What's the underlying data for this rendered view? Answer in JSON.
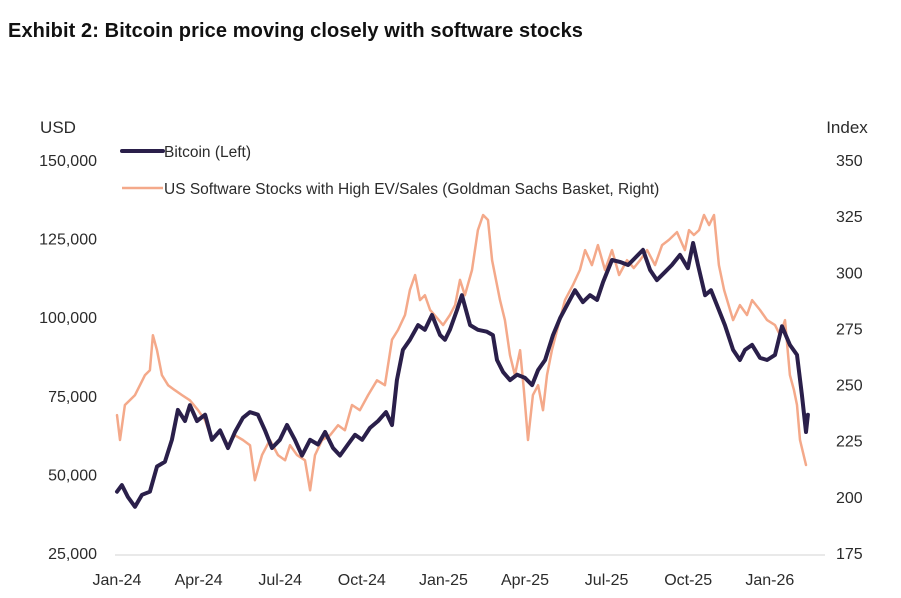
{
  "title": "Exhibit 2: Bitcoin price moving closely with software stocks",
  "chart_data": {
    "type": "line",
    "title": "Exhibit 2: Bitcoin price moving closely with software stocks",
    "x_unit": "months since Jan-24",
    "xlabel": "",
    "x_ticks": [
      "Jan-24",
      "Apr-24",
      "Jul-24",
      "Oct-24",
      "Jan-25",
      "Apr-25",
      "Jul-25",
      "Oct-25",
      "Jan-26"
    ],
    "x_tick_positions": [
      0,
      3,
      6,
      9,
      12,
      15,
      18,
      21,
      24
    ],
    "xlim": [
      0,
      25.4
    ],
    "left_axis": {
      "label": "USD",
      "ylim": [
        25000,
        150000
      ],
      "ticks": [
        25000,
        50000,
        75000,
        100000,
        125000,
        150000
      ],
      "tick_labels": [
        "25,000",
        "50,000",
        "75,000",
        "100,000",
        "125,000",
        "150,000"
      ]
    },
    "right_axis": {
      "label": "Index",
      "ylim": [
        175,
        350
      ],
      "ticks": [
        175,
        200,
        225,
        250,
        275,
        300,
        325,
        350
      ],
      "tick_labels": [
        "175",
        "200",
        "225",
        "250",
        "275",
        "300",
        "325",
        "350"
      ]
    },
    "grid": false,
    "legend": "top-left",
    "series": [
      {
        "name": "Bitcoin (Left)",
        "axis": "left",
        "color": "#2a1f4a",
        "x": [
          0,
          0.18,
          0.4,
          0.66,
          0.92,
          1.21,
          1.47,
          1.76,
          2.02,
          2.24,
          2.5,
          2.68,
          2.94,
          3.24,
          3.49,
          3.79,
          4.08,
          4.34,
          4.63,
          4.89,
          5.18,
          5.44,
          5.7,
          5.99,
          6.25,
          6.54,
          6.8,
          7.1,
          7.39,
          7.65,
          7.94,
          8.2,
          8.49,
          8.75,
          9.01,
          9.3,
          9.6,
          9.89,
          10.11,
          10.29,
          10.51,
          10.77,
          11.07,
          11.32,
          11.58,
          11.88,
          12.06,
          12.24,
          12.5,
          12.68,
          12.98,
          13.27,
          13.6,
          13.82,
          13.97,
          14.19,
          14.45,
          14.71,
          15.0,
          15.26,
          15.48,
          15.74,
          16.03,
          16.29,
          16.54,
          16.84,
          17.13,
          17.39,
          17.65,
          17.87,
          18.2,
          18.49,
          18.79,
          19.04,
          19.34,
          19.6,
          19.85,
          20.15,
          20.4,
          20.7,
          20.99,
          21.18,
          21.36,
          21.62,
          21.84,
          22.06,
          22.35,
          22.65,
          22.9,
          23.09,
          23.35,
          23.64,
          23.9,
          24.19,
          24.45,
          24.74,
          25.0,
          25.18,
          25.33,
          25.4
        ],
        "values": [
          44500,
          46600,
          42800,
          39700,
          43500,
          44500,
          52500,
          54000,
          61000,
          70500,
          67000,
          72000,
          67000,
          69000,
          61000,
          64000,
          58400,
          63500,
          68000,
          69800,
          69000,
          64000,
          58400,
          61000,
          65700,
          61000,
          56000,
          61000,
          59500,
          63500,
          58400,
          56000,
          59500,
          62600,
          61000,
          64800,
          67000,
          69800,
          65700,
          80000,
          89600,
          92800,
          97500,
          96000,
          100700,
          94300,
          92800,
          96000,
          102300,
          107000,
          97500,
          96000,
          95400,
          94300,
          86400,
          82600,
          80000,
          81700,
          80700,
          78400,
          83200,
          86400,
          94300,
          99700,
          103800,
          108600,
          104800,
          107000,
          105500,
          111200,
          118200,
          117600,
          116600,
          118800,
          121400,
          115000,
          111800,
          114400,
          116600,
          119800,
          115600,
          123600,
          116600,
          107000,
          108600,
          103800,
          97500,
          89600,
          86400,
          89600,
          91200,
          87100,
          86400,
          88000,
          97100,
          91200,
          88000,
          75300,
          63500,
          69000
        ]
      },
      {
        "name": "US Software Stocks with High EV/Sales (Goldman Sachs Basket, Right)",
        "axis": "right",
        "color": "#f4a98a",
        "x": [
          0,
          0.11,
          0.29,
          0.66,
          1.03,
          1.21,
          1.32,
          1.47,
          1.65,
          1.88,
          2.13,
          2.39,
          2.68,
          2.98,
          3.24,
          3.49,
          3.79,
          4.08,
          4.34,
          4.63,
          4.89,
          5.07,
          5.33,
          5.62,
          5.92,
          6.18,
          6.36,
          6.62,
          6.91,
          7.1,
          7.28,
          7.54,
          7.83,
          8.13,
          8.38,
          8.64,
          8.93,
          9.23,
          9.56,
          9.85,
          10.11,
          10.33,
          10.59,
          10.77,
          10.96,
          11.14,
          11.32,
          11.51,
          11.77,
          11.99,
          12.24,
          12.43,
          12.61,
          12.79,
          13.05,
          13.27,
          13.46,
          13.64,
          13.79,
          14.08,
          14.26,
          14.45,
          14.63,
          14.82,
          14.96,
          15.11,
          15.29,
          15.48,
          15.66,
          15.81,
          15.99,
          16.18,
          16.47,
          16.76,
          17.02,
          17.21,
          17.46,
          17.68,
          17.94,
          18.2,
          18.46,
          18.75,
          19.0,
          19.23,
          19.49,
          19.78,
          20.04,
          20.29,
          20.59,
          20.88,
          21.03,
          21.21,
          21.4,
          21.58,
          21.77,
          21.95,
          22.13,
          22.32,
          22.65,
          22.9,
          23.16,
          23.35,
          23.64,
          23.9,
          24.19,
          24.38,
          24.56,
          24.74,
          24.89,
          25.0,
          25.11,
          25.33
        ],
        "values": [
          236.4,
          225.3,
          240.9,
          245.3,
          254.2,
          256.4,
          272,
          265.3,
          254.2,
          249.7,
          247.5,
          245.3,
          243,
          238.6,
          234.1,
          225.3,
          229.7,
          223,
          227.4,
          225.3,
          223,
          207.4,
          218.6,
          225.3,
          218.6,
          216.3,
          223,
          218.6,
          216.3,
          202.9,
          218.6,
          225.3,
          227.4,
          231.9,
          229.7,
          240.9,
          238.6,
          245.3,
          251.9,
          249.7,
          270,
          274.3,
          281,
          292.1,
          298.8,
          287.6,
          289.8,
          283.2,
          279.6,
          276.5,
          281,
          285.4,
          296.6,
          289.8,
          301,
          318.8,
          325.5,
          323.3,
          305.4,
          287.6,
          278.7,
          263.1,
          254.2,
          265.3,
          247.5,
          225.3,
          245.3,
          249.7,
          238.6,
          254.2,
          265.3,
          274.3,
          287.6,
          294.3,
          301,
          309.9,
          303.2,
          312.1,
          301,
          309.9,
          298.8,
          305.4,
          301.9,
          305.4,
          309.9,
          303.2,
          312.1,
          314.4,
          317.9,
          309.9,
          318.8,
          316.6,
          318.8,
          325.5,
          321,
          325.5,
          303.2,
          292.1,
          278.7,
          285.4,
          281,
          287.6,
          283.2,
          278.7,
          276.5,
          272,
          278.7,
          254.2,
          247.5,
          240.9,
          225.3,
          214.2
        ]
      }
    ]
  }
}
